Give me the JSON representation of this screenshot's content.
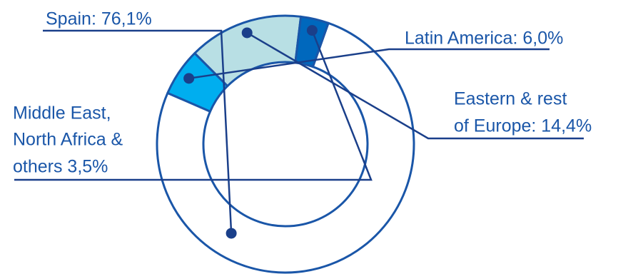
{
  "chart_data": {
    "type": "pie",
    "variant": "donut",
    "title": "",
    "start_angle_deg": 19.5,
    "colors": {
      "outline": "#1a56a8",
      "leader": "#1a3f8a",
      "text": "#1a56a8",
      "background": "#ffffff"
    },
    "slices": [
      {
        "name": "Spain",
        "value": 76.1,
        "color": "#ffffff",
        "label_lines": [
          "Spain: 76,1%"
        ]
      },
      {
        "name": "Latin America",
        "value": 6.0,
        "color": "#00aeef",
        "label_lines": [
          "Latin America: 6,0%"
        ]
      },
      {
        "name": "Eastern & rest of Europe",
        "value": 14.4,
        "color": "#b8dfe4",
        "label_lines": [
          "Eastern & rest",
          "of Europe: 14,4%"
        ]
      },
      {
        "name": "Middle East, North Africa & others",
        "value": 3.5,
        "color": "#0068bd",
        "label_lines": [
          "Middle East,",
          "North Africa &",
          "others 3,5%"
        ]
      }
    ]
  }
}
